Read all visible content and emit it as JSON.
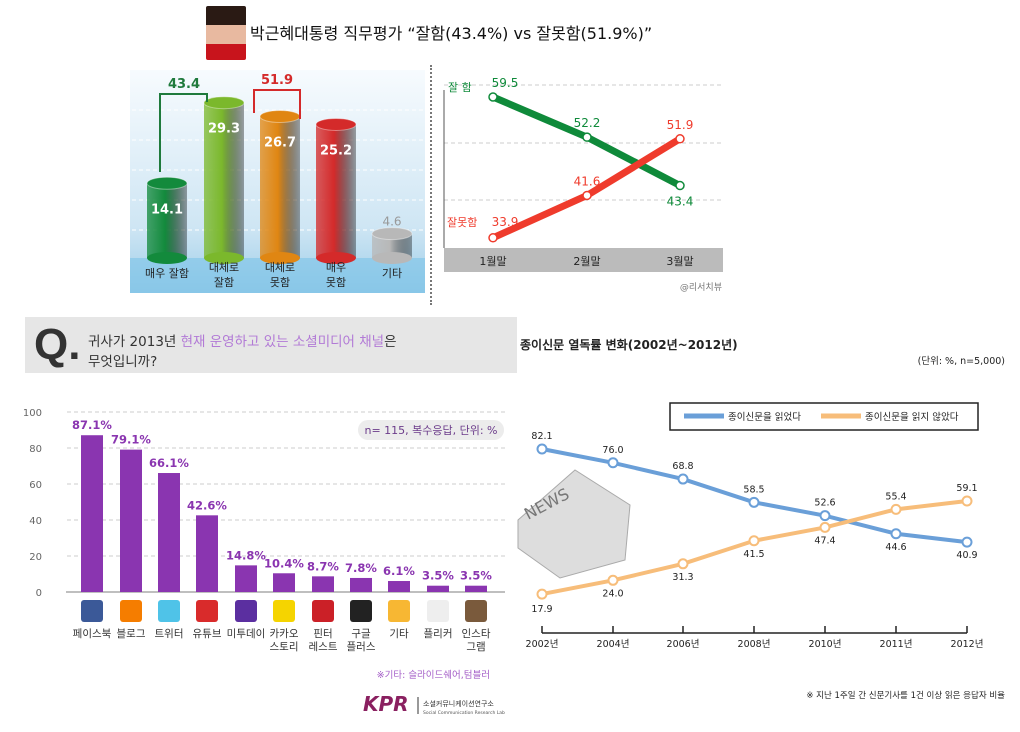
{
  "header": {
    "title": "박근혜대통령 직무평가 “잘함(43.4%) vs 잘못함(51.9%)”"
  },
  "chart_data": [
    {
      "type": "bar",
      "id": "approval-breakdown",
      "categories": [
        "매우 잘함",
        "대체로 잘함",
        "대체로 못함",
        "매우 못함",
        "기타"
      ],
      "values": [
        14.1,
        29.3,
        26.7,
        25.2,
        4.6
      ],
      "colors": [
        "#138a3c",
        "#7bb82c",
        "#e08612",
        "#d42a2a",
        "#b8b8b8"
      ],
      "brackets": [
        {
          "label": "43.4",
          "color": "#1f7a3c"
        },
        {
          "label": "51.9",
          "color": "#d42a2a"
        }
      ]
    },
    {
      "type": "line",
      "id": "approval-trend",
      "categories": [
        "1월말",
        "2월말",
        "3월말"
      ],
      "series": [
        {
          "name": "잘  함",
          "values": [
            59.5,
            52.2,
            43.4
          ],
          "color": "#0f8a3a"
        },
        {
          "name": "잘못함",
          "values": [
            33.9,
            41.6,
            51.9
          ],
          "color": "#ef3b2c"
        }
      ],
      "source": "@리서치뷰"
    },
    {
      "type": "bar",
      "id": "social-media-channels",
      "question": {
        "prefix": "귀사가 2013년 ",
        "highlight": "현재 운영하고 있는 소셜미디어 채널",
        "suffix": "은",
        "line2": "무엇입니까?"
      },
      "categories": [
        "페이스북",
        "블로그",
        "트위터",
        "유튜브",
        "미투데이",
        "카카오 스토리",
        "핀터 레스트",
        "구글 플러스",
        "기타",
        "플리커",
        "인스타 그램"
      ],
      "values": [
        87.1,
        79.1,
        66.1,
        42.6,
        14.8,
        10.4,
        8.7,
        7.8,
        6.1,
        3.5,
        3.5
      ],
      "value_labels": [
        "87.1%",
        "79.1%",
        "66.1%",
        "42.6%",
        "14.8%",
        "10.4%",
        "8.7%",
        "7.8%",
        "6.1%",
        "3.5%",
        "3.5%"
      ],
      "icons": [
        "facebook-icon",
        "blogger-icon",
        "twitter-icon",
        "youtube-icon",
        "me2day-icon",
        "kakaostory-icon",
        "pinterest-icon",
        "googleplus-icon",
        "star-icon",
        "flickr-icon",
        "instagram-icon"
      ],
      "yticks": [
        0,
        20,
        40,
        60,
        80,
        100
      ],
      "ylim": [
        0,
        100
      ],
      "bar_color": "#8a35b0",
      "note_box": "n= 115, 복수응답, 단위: %",
      "footnote": "※기타: 슬라이드쉐어,텀블러",
      "logo": "KPR",
      "logo_caption": "소셜커뮤니케이션연구소",
      "logo_sub": "Social Communication Research Lab"
    },
    {
      "type": "line",
      "id": "newspaper-readership",
      "title": "종이신문 열독률 변화(2002년~2012년)",
      "unit": "(단위: %, n=5,000)",
      "categories": [
        "2002년",
        "2004년",
        "2006년",
        "2008년",
        "2010년",
        "2011년",
        "2012년"
      ],
      "series": [
        {
          "name": "종이신문을 읽었다",
          "values": [
            82.1,
            76.0,
            68.8,
            58.5,
            52.6,
            44.6,
            40.9
          ],
          "labels": [
            "82.1",
            "76.0",
            "68.8",
            "58.5",
            "52.6",
            "44.6",
            "40.9"
          ],
          "color": "#6a9fd8"
        },
        {
          "name": "종이신문을 읽지 않았다",
          "values": [
            17.9,
            24.0,
            31.3,
            41.5,
            47.4,
            55.4,
            59.1
          ],
          "labels": [
            "17.9",
            "24.0",
            "31.3",
            "41.5",
            "47.4",
            "55.4",
            "59.1"
          ],
          "color": "#f7bd7a"
        }
      ],
      "footnote": "※ 지난 1주일 간 신문기사를 1건 이상 읽은 응답자 비율"
    }
  ]
}
